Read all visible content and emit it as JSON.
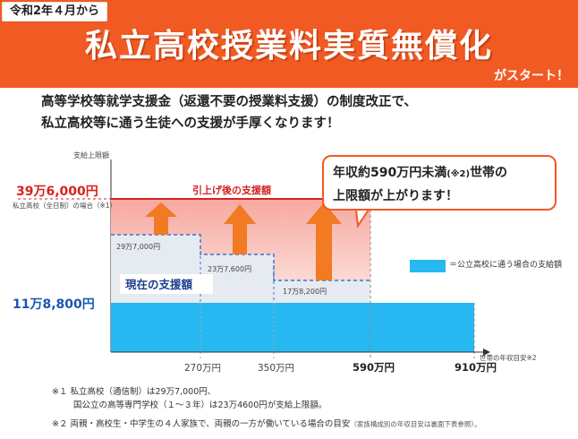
{
  "header": {
    "date_tag": "令和2年４月から",
    "title": "私立高校授業料実質無償化",
    "subtitle": "がスタート！"
  },
  "lead": {
    "line1": "高等学校等就学支援金（返還不要の授業料支援）の制度改正で、",
    "line2": "私立高校等に通う生徒への支援が手厚くなります！"
  },
  "chart": {
    "y_axis_label": "支給上限額",
    "x_axis_label": "世帯の年収目安※2",
    "new_limit_value": "39万6,000円",
    "new_limit_note": "私立高校（全日制）の場合（※1）",
    "new_limit_label": "引上げ後の支援額",
    "base_value": "11万8,800円",
    "current_label": "現在の支援額",
    "step_labels": [
      "29万7,000円",
      "23万7,600円",
      "17万8,200円"
    ],
    "x_ticks": [
      "270万円",
      "350万円",
      "590万円",
      "910万円"
    ]
  },
  "callout": {
    "line1_a": "年収約590万円未満",
    "line1_note": "(※2)",
    "line1_b": "世帯の",
    "line2": "上限額が上がります！"
  },
  "legend": {
    "text": "＝公立高校に通う場合の支給額"
  },
  "notes": {
    "n1_line1": "※１  私立高校（通信制）は29万7,000円、",
    "n1_line2": "国公立の高等専門学校（１～３年）は23万4600円が支給上限額。",
    "n2_main": "※２  両親・高校生・中学生の４人家族で、両親の一方が働いている場合の目安",
    "n2_small": "（家族構成別の年収目安は裏面下表参照）。"
  },
  "colors": {
    "banner": "#f15a22",
    "public_blue": "#27b8f2",
    "arrow_orange": "#f27a22",
    "limit_red": "#d6231e",
    "current_gray": "#e6ebf1"
  }
}
